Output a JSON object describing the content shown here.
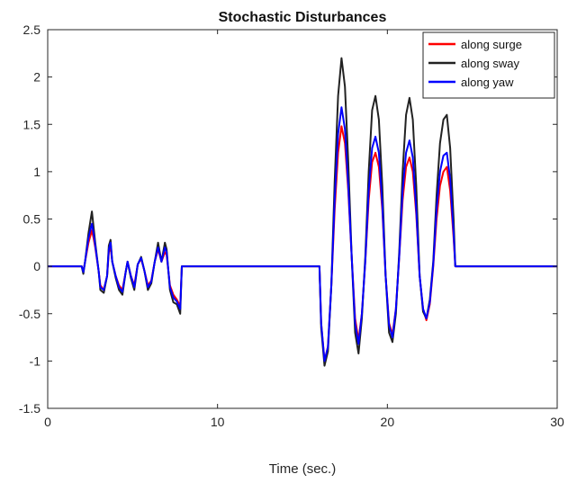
{
  "chart_data": {
    "type": "line",
    "title": "Stochastic Disturbances",
    "xlabel": "Time (sec.)",
    "ylabel": "",
    "xlim": [
      0,
      30
    ],
    "ylim": [
      -1.5,
      2.5
    ],
    "x_ticks": [
      0,
      10,
      20,
      30
    ],
    "x_tick_labels": [
      "0",
      "10",
      "20",
      "30"
    ],
    "y_ticks": [
      -1.5,
      -1,
      -0.5,
      0,
      0.5,
      1,
      1.5,
      2,
      2.5
    ],
    "y_tick_labels": [
      "-1.5",
      "-1",
      "-0.5",
      "0",
      "0.5",
      "1",
      "1.5",
      "2",
      "2.5"
    ],
    "grid": false,
    "legend_position": "top-right",
    "series": [
      {
        "name": "along surge",
        "color": "#ff0000",
        "points": [
          [
            0,
            0
          ],
          [
            2.0,
            0
          ],
          [
            2.1,
            -0.05
          ],
          [
            2.2,
            0.05
          ],
          [
            2.4,
            0.25
          ],
          [
            2.6,
            0.38
          ],
          [
            2.7,
            0.3
          ],
          [
            2.8,
            0.2
          ],
          [
            3.0,
            -0.05
          ],
          [
            3.1,
            -0.2
          ],
          [
            3.3,
            -0.25
          ],
          [
            3.5,
            -0.1
          ],
          [
            3.6,
            0.15
          ],
          [
            3.7,
            0.2
          ],
          [
            3.8,
            0.05
          ],
          [
            4.0,
            -0.1
          ],
          [
            4.2,
            -0.2
          ],
          [
            4.4,
            -0.25
          ],
          [
            4.6,
            -0.05
          ],
          [
            4.7,
            0.05
          ],
          [
            4.9,
            -0.1
          ],
          [
            5.1,
            -0.2
          ],
          [
            5.3,
            0.02
          ],
          [
            5.5,
            0.08
          ],
          [
            5.7,
            -0.05
          ],
          [
            5.9,
            -0.2
          ],
          [
            6.1,
            -0.15
          ],
          [
            6.3,
            0.05
          ],
          [
            6.5,
            0.18
          ],
          [
            6.7,
            0.05
          ],
          [
            6.9,
            0.15
          ],
          [
            7.0,
            0.12
          ],
          [
            7.2,
            -0.2
          ],
          [
            7.4,
            -0.3
          ],
          [
            7.6,
            -0.35
          ],
          [
            7.8,
            -0.42
          ],
          [
            7.9,
            0
          ],
          [
            16.0,
            0
          ],
          [
            16.1,
            -0.6
          ],
          [
            16.3,
            -1.0
          ],
          [
            16.5,
            -0.85
          ],
          [
            16.7,
            -0.2
          ],
          [
            16.9,
            0.6
          ],
          [
            17.1,
            1.2
          ],
          [
            17.3,
            1.48
          ],
          [
            17.5,
            1.3
          ],
          [
            17.7,
            0.8
          ],
          [
            17.9,
            0.1
          ],
          [
            18.1,
            -0.55
          ],
          [
            18.3,
            -0.78
          ],
          [
            18.5,
            -0.5
          ],
          [
            18.7,
            0.05
          ],
          [
            18.9,
            0.7
          ],
          [
            19.1,
            1.1
          ],
          [
            19.3,
            1.2
          ],
          [
            19.5,
            1.05
          ],
          [
            19.7,
            0.6
          ],
          [
            19.9,
            -0.1
          ],
          [
            20.1,
            -0.6
          ],
          [
            20.3,
            -0.72
          ],
          [
            20.5,
            -0.45
          ],
          [
            20.7,
            0.1
          ],
          [
            20.9,
            0.7
          ],
          [
            21.1,
            1.05
          ],
          [
            21.3,
            1.15
          ],
          [
            21.5,
            1.0
          ],
          [
            21.7,
            0.55
          ],
          [
            21.9,
            -0.1
          ],
          [
            22.1,
            -0.45
          ],
          [
            22.3,
            -0.57
          ],
          [
            22.5,
            -0.4
          ],
          [
            22.7,
            0.0
          ],
          [
            22.9,
            0.5
          ],
          [
            23.1,
            0.85
          ],
          [
            23.3,
            1.0
          ],
          [
            23.5,
            1.05
          ],
          [
            23.7,
            0.8
          ],
          [
            23.9,
            0.3
          ],
          [
            24.0,
            0
          ],
          [
            30,
            0
          ]
        ]
      },
      {
        "name": "along sway",
        "color": "#222222",
        "points": [
          [
            0,
            0
          ],
          [
            2.0,
            0
          ],
          [
            2.1,
            -0.08
          ],
          [
            2.2,
            0.05
          ],
          [
            2.4,
            0.35
          ],
          [
            2.6,
            0.58
          ],
          [
            2.7,
            0.42
          ],
          [
            2.8,
            0.25
          ],
          [
            3.0,
            -0.05
          ],
          [
            3.1,
            -0.25
          ],
          [
            3.3,
            -0.28
          ],
          [
            3.5,
            -0.1
          ],
          [
            3.6,
            0.22
          ],
          [
            3.7,
            0.28
          ],
          [
            3.8,
            0.05
          ],
          [
            4.0,
            -0.12
          ],
          [
            4.2,
            -0.25
          ],
          [
            4.4,
            -0.3
          ],
          [
            4.6,
            -0.05
          ],
          [
            4.7,
            0.05
          ],
          [
            4.9,
            -0.12
          ],
          [
            5.1,
            -0.25
          ],
          [
            5.3,
            0.02
          ],
          [
            5.5,
            0.1
          ],
          [
            5.7,
            -0.05
          ],
          [
            5.9,
            -0.25
          ],
          [
            6.1,
            -0.18
          ],
          [
            6.3,
            0.05
          ],
          [
            6.5,
            0.25
          ],
          [
            6.7,
            0.05
          ],
          [
            6.9,
            0.25
          ],
          [
            7.0,
            0.18
          ],
          [
            7.2,
            -0.25
          ],
          [
            7.4,
            -0.38
          ],
          [
            7.6,
            -0.4
          ],
          [
            7.8,
            -0.5
          ],
          [
            7.9,
            0
          ],
          [
            16.0,
            0
          ],
          [
            16.1,
            -0.65
          ],
          [
            16.3,
            -1.05
          ],
          [
            16.5,
            -0.9
          ],
          [
            16.7,
            -0.2
          ],
          [
            16.9,
            0.9
          ],
          [
            17.1,
            1.8
          ],
          [
            17.3,
            2.2
          ],
          [
            17.5,
            1.9
          ],
          [
            17.7,
            1.1
          ],
          [
            17.9,
            0.1
          ],
          [
            18.1,
            -0.7
          ],
          [
            18.3,
            -0.92
          ],
          [
            18.5,
            -0.55
          ],
          [
            18.7,
            0.1
          ],
          [
            18.9,
            1.0
          ],
          [
            19.1,
            1.65
          ],
          [
            19.3,
            1.8
          ],
          [
            19.5,
            1.55
          ],
          [
            19.7,
            0.85
          ],
          [
            19.9,
            -0.1
          ],
          [
            20.1,
            -0.7
          ],
          [
            20.3,
            -0.8
          ],
          [
            20.5,
            -0.5
          ],
          [
            20.7,
            0.15
          ],
          [
            20.9,
            1.0
          ],
          [
            21.1,
            1.6
          ],
          [
            21.3,
            1.78
          ],
          [
            21.5,
            1.55
          ],
          [
            21.7,
            0.85
          ],
          [
            21.9,
            -0.1
          ],
          [
            22.1,
            -0.48
          ],
          [
            22.3,
            -0.55
          ],
          [
            22.5,
            -0.35
          ],
          [
            22.7,
            0.05
          ],
          [
            22.9,
            0.75
          ],
          [
            23.1,
            1.3
          ],
          [
            23.3,
            1.55
          ],
          [
            23.5,
            1.6
          ],
          [
            23.7,
            1.25
          ],
          [
            23.9,
            0.5
          ],
          [
            24.0,
            0
          ],
          [
            30,
            0
          ]
        ]
      },
      {
        "name": "along yaw",
        "color": "#0000ff",
        "points": [
          [
            0,
            0
          ],
          [
            2.0,
            0
          ],
          [
            2.1,
            -0.06
          ],
          [
            2.2,
            0.05
          ],
          [
            2.4,
            0.3
          ],
          [
            2.6,
            0.45
          ],
          [
            2.7,
            0.35
          ],
          [
            2.8,
            0.22
          ],
          [
            3.0,
            -0.05
          ],
          [
            3.1,
            -0.22
          ],
          [
            3.3,
            -0.25
          ],
          [
            3.5,
            -0.1
          ],
          [
            3.6,
            0.18
          ],
          [
            3.7,
            0.25
          ],
          [
            3.8,
            0.05
          ],
          [
            4.0,
            -0.1
          ],
          [
            4.2,
            -0.22
          ],
          [
            4.4,
            -0.27
          ],
          [
            4.6,
            -0.05
          ],
          [
            4.7,
            0.05
          ],
          [
            4.9,
            -0.1
          ],
          [
            5.1,
            -0.22
          ],
          [
            5.3,
            0.02
          ],
          [
            5.5,
            0.09
          ],
          [
            5.7,
            -0.05
          ],
          [
            5.9,
            -0.22
          ],
          [
            6.1,
            -0.16
          ],
          [
            6.3,
            0.05
          ],
          [
            6.5,
            0.2
          ],
          [
            6.7,
            0.05
          ],
          [
            6.9,
            0.2
          ],
          [
            7.0,
            0.15
          ],
          [
            7.2,
            -0.22
          ],
          [
            7.4,
            -0.33
          ],
          [
            7.6,
            -0.37
          ],
          [
            7.8,
            -0.45
          ],
          [
            7.9,
            0
          ],
          [
            16.0,
            0
          ],
          [
            16.1,
            -0.6
          ],
          [
            16.3,
            -1.0
          ],
          [
            16.5,
            -0.85
          ],
          [
            16.7,
            -0.2
          ],
          [
            16.9,
            0.7
          ],
          [
            17.1,
            1.4
          ],
          [
            17.3,
            1.68
          ],
          [
            17.5,
            1.45
          ],
          [
            17.7,
            0.85
          ],
          [
            17.9,
            0.1
          ],
          [
            18.1,
            -0.6
          ],
          [
            18.3,
            -0.82
          ],
          [
            18.5,
            -0.5
          ],
          [
            18.7,
            0.05
          ],
          [
            18.9,
            0.8
          ],
          [
            19.1,
            1.25
          ],
          [
            19.3,
            1.37
          ],
          [
            19.5,
            1.2
          ],
          [
            19.7,
            0.65
          ],
          [
            19.9,
            -0.1
          ],
          [
            20.1,
            -0.62
          ],
          [
            20.3,
            -0.75
          ],
          [
            20.5,
            -0.45
          ],
          [
            20.7,
            0.1
          ],
          [
            20.9,
            0.8
          ],
          [
            21.1,
            1.2
          ],
          [
            21.3,
            1.33
          ],
          [
            21.5,
            1.15
          ],
          [
            21.7,
            0.6
          ],
          [
            21.9,
            -0.1
          ],
          [
            22.1,
            -0.45
          ],
          [
            22.3,
            -0.55
          ],
          [
            22.5,
            -0.38
          ],
          [
            22.7,
            0.02
          ],
          [
            22.9,
            0.6
          ],
          [
            23.1,
            1.0
          ],
          [
            23.3,
            1.17
          ],
          [
            23.5,
            1.2
          ],
          [
            23.7,
            0.92
          ],
          [
            23.9,
            0.35
          ],
          [
            24.0,
            0
          ],
          [
            30,
            0
          ]
        ]
      }
    ]
  }
}
